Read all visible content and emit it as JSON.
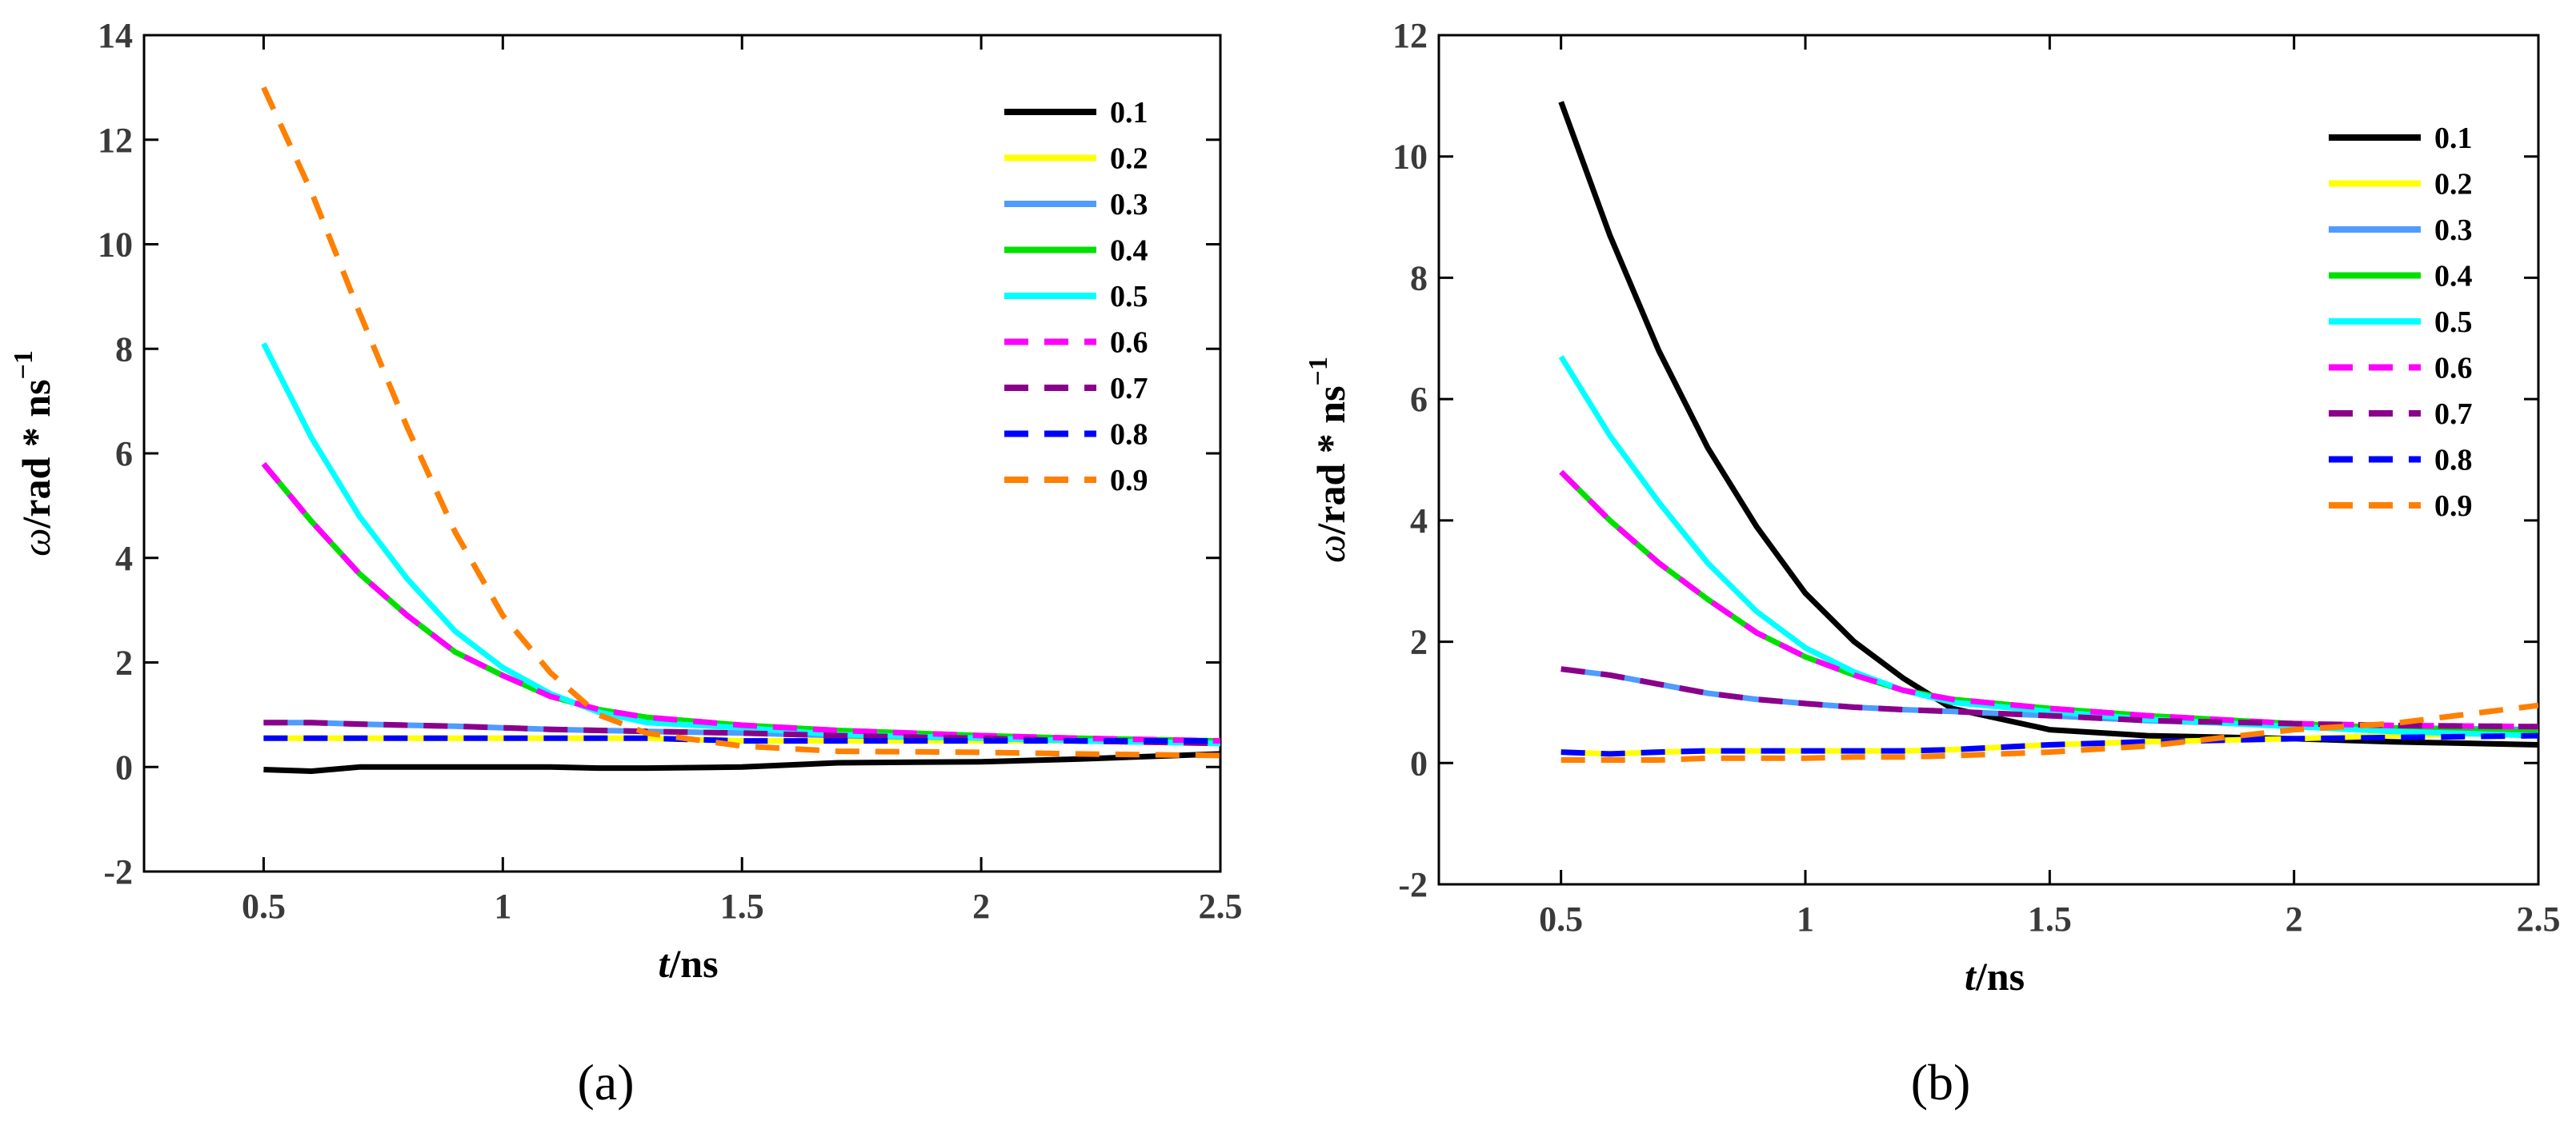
{
  "chart_data": [
    {
      "type": "line",
      "panel_label": "(a)",
      "xlabel_var": "t",
      "xlabel_unit": "/ns",
      "ylabel_var": "ω",
      "ylabel_unit": "/rad * ns",
      "ylabel_exp": "−1",
      "xlim": [
        0.25,
        2.5
      ],
      "ylim": [
        -2,
        14
      ],
      "xticks": [
        0.5,
        1,
        1.5,
        2,
        2.5
      ],
      "xtick_labels": [
        "0.5",
        "1",
        "1.5",
        "2",
        "2.5"
      ],
      "yticks": [
        -2,
        0,
        2,
        4,
        6,
        8,
        10,
        12,
        14
      ],
      "ytick_labels": [
        "-2",
        "0",
        "2",
        "4",
        "6",
        "8",
        "10",
        "12",
        "14"
      ],
      "x": [
        0.5,
        0.6,
        0.7,
        0.8,
        0.9,
        1.0,
        1.1,
        1.2,
        1.3,
        1.5,
        1.7,
        2.0,
        2.2,
        2.5
      ],
      "series": [
        {
          "name": "0.1",
          "color": "#000000",
          "dash": "solid",
          "values": [
            -0.05,
            -0.08,
            0.0,
            0.0,
            0.0,
            0.0,
            0.0,
            -0.02,
            -0.02,
            0.0,
            0.08,
            0.1,
            0.15,
            0.25
          ]
        },
        {
          "name": "0.2",
          "color": "#ffff00",
          "dash": "solid",
          "values": [
            0.55,
            0.55,
            0.55,
            0.55,
            0.55,
            0.55,
            0.55,
            0.55,
            0.55,
            0.5,
            0.5,
            0.5,
            0.5,
            0.5
          ]
        },
        {
          "name": "0.3",
          "color": "#4f9bff",
          "dash": "solid",
          "values": [
            0.85,
            0.85,
            0.82,
            0.8,
            0.78,
            0.75,
            0.72,
            0.7,
            0.68,
            0.65,
            0.6,
            0.55,
            0.5,
            0.45
          ]
        },
        {
          "name": "0.4",
          "color": "#00e000",
          "dash": "solid",
          "values": [
            5.8,
            4.7,
            3.7,
            2.9,
            2.2,
            1.75,
            1.35,
            1.1,
            0.95,
            0.8,
            0.7,
            0.6,
            0.55,
            0.5
          ]
        },
        {
          "name": "0.5",
          "color": "#00ffff",
          "dash": "solid",
          "values": [
            8.1,
            6.3,
            4.8,
            3.6,
            2.6,
            1.9,
            1.4,
            1.05,
            0.85,
            0.75,
            0.62,
            0.55,
            0.5,
            0.45
          ]
        },
        {
          "name": "0.6",
          "color": "#ff00ff",
          "dash": "dashed",
          "values": [
            5.8,
            4.7,
            3.7,
            2.9,
            2.2,
            1.75,
            1.35,
            1.1,
            0.95,
            0.8,
            0.7,
            0.6,
            0.55,
            0.5
          ]
        },
        {
          "name": "0.7",
          "color": "#8b008b",
          "dash": "dashed",
          "values": [
            0.85,
            0.85,
            0.82,
            0.8,
            0.78,
            0.75,
            0.72,
            0.7,
            0.68,
            0.65,
            0.6,
            0.55,
            0.5,
            0.45
          ]
        },
        {
          "name": "0.8",
          "color": "#0000ff",
          "dash": "dashed",
          "values": [
            0.55,
            0.55,
            0.55,
            0.55,
            0.55,
            0.55,
            0.55,
            0.55,
            0.55,
            0.5,
            0.5,
            0.5,
            0.5,
            0.5
          ]
        },
        {
          "name": "0.9",
          "color": "#ff7f00",
          "dash": "dashed",
          "values": [
            13.0,
            11.0,
            8.7,
            6.5,
            4.5,
            2.9,
            1.8,
            1.0,
            0.65,
            0.4,
            0.3,
            0.28,
            0.25,
            0.22
          ]
        }
      ]
    },
    {
      "type": "line",
      "panel_label": "(b)",
      "xlabel_var": "t",
      "xlabel_unit": "/ns",
      "ylabel_var": "ω",
      "ylabel_unit": "/rad * ns",
      "ylabel_exp": "−1",
      "xlim": [
        0.25,
        2.5
      ],
      "ylim": [
        -2,
        12
      ],
      "xticks": [
        0.5,
        1,
        1.5,
        2,
        2.5
      ],
      "xtick_labels": [
        "0.5",
        "1",
        "1.5",
        "2",
        "2.5"
      ],
      "yticks": [
        -2,
        0,
        2,
        4,
        6,
        8,
        10,
        12
      ],
      "ytick_labels": [
        "-2",
        "0",
        "2",
        "4",
        "6",
        "8",
        "10",
        "12"
      ],
      "x": [
        0.5,
        0.6,
        0.7,
        0.8,
        0.9,
        1.0,
        1.1,
        1.2,
        1.3,
        1.5,
        1.7,
        2.0,
        2.2,
        2.5
      ],
      "series": [
        {
          "name": "0.1",
          "color": "#000000",
          "dash": "solid",
          "values": [
            10.9,
            8.7,
            6.8,
            5.2,
            3.9,
            2.8,
            2.0,
            1.4,
            0.9,
            0.55,
            0.45,
            0.4,
            0.35,
            0.3
          ]
        },
        {
          "name": "0.2",
          "color": "#ffff00",
          "dash": "solid",
          "values": [
            0.18,
            0.15,
            0.18,
            0.2,
            0.2,
            0.2,
            0.2,
            0.2,
            0.22,
            0.3,
            0.35,
            0.4,
            0.45,
            0.5
          ]
        },
        {
          "name": "0.3",
          "color": "#4f9bff",
          "dash": "solid",
          "values": [
            1.55,
            1.45,
            1.3,
            1.15,
            1.05,
            0.98,
            0.92,
            0.88,
            0.85,
            0.78,
            0.7,
            0.62,
            0.58,
            0.55
          ]
        },
        {
          "name": "0.4",
          "color": "#00e000",
          "dash": "solid",
          "values": [
            4.8,
            4.0,
            3.3,
            2.7,
            2.15,
            1.75,
            1.45,
            1.2,
            1.05,
            0.9,
            0.78,
            0.65,
            0.58,
            0.5
          ]
        },
        {
          "name": "0.5",
          "color": "#00ffff",
          "dash": "solid",
          "values": [
            6.7,
            5.4,
            4.3,
            3.3,
            2.5,
            1.9,
            1.5,
            1.2,
            1.0,
            0.85,
            0.72,
            0.6,
            0.52,
            0.45
          ]
        },
        {
          "name": "0.6",
          "color": "#ff00ff",
          "dash": "dashed",
          "values": [
            4.8,
            4.0,
            3.3,
            2.7,
            2.15,
            1.75,
            1.45,
            1.2,
            1.05,
            0.9,
            0.78,
            0.65,
            0.62,
            0.6
          ]
        },
        {
          "name": "0.7",
          "color": "#8b008b",
          "dash": "dashed",
          "values": [
            1.55,
            1.45,
            1.3,
            1.15,
            1.05,
            0.98,
            0.92,
            0.88,
            0.85,
            0.78,
            0.7,
            0.65,
            0.62,
            0.6
          ]
        },
        {
          "name": "0.8",
          "color": "#0000ff",
          "dash": "dashed",
          "values": [
            0.18,
            0.15,
            0.18,
            0.2,
            0.2,
            0.2,
            0.2,
            0.2,
            0.22,
            0.3,
            0.35,
            0.4,
            0.42,
            0.45
          ]
        },
        {
          "name": "0.9",
          "color": "#ff7f00",
          "dash": "dashed",
          "values": [
            0.05,
            0.05,
            0.05,
            0.08,
            0.08,
            0.08,
            0.1,
            0.1,
            0.12,
            0.18,
            0.28,
            0.55,
            0.65,
            0.95
          ]
        }
      ]
    }
  ]
}
